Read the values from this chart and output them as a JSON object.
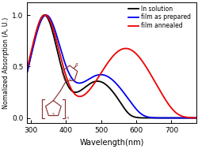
{
  "title": "",
  "xlabel": "Wavelength(nm)",
  "ylabel": "Nomalized Absorption (A, U.)",
  "xlim": [
    290,
    770
  ],
  "ylim": [
    -0.05,
    1.12
  ],
  "background_color": "#ffffff",
  "legend": [
    "In solution",
    "film as prepared",
    "film annealed"
  ],
  "legend_colors": [
    "#000000",
    "#0000ee",
    "#ee0000"
  ],
  "xticks": [
    300,
    400,
    500,
    600,
    700
  ],
  "yticks": [
    0.0,
    0.5,
    1.0
  ],
  "mol_color": "#8B3333"
}
